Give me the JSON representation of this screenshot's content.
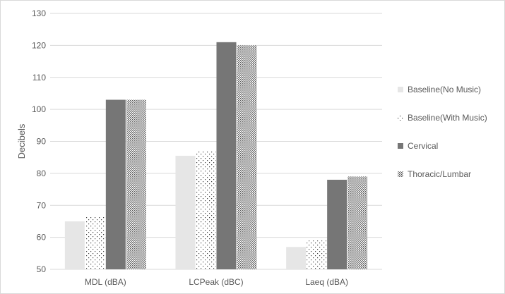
{
  "chart_data": {
    "type": "bar",
    "title": "",
    "xlabel": "",
    "ylabel": "Decibels",
    "ylim": [
      50,
      130
    ],
    "y_ticks": [
      50,
      60,
      70,
      80,
      90,
      100,
      110,
      120,
      130
    ],
    "grid": true,
    "legend_position": "right",
    "categories": [
      "MDL (dBA)",
      "LCPeak (dBC)",
      "Laeq (dBA)"
    ],
    "series": [
      {
        "name": "Baseline(No Music)",
        "pattern": "solid",
        "color": "#e6e6e6",
        "values": [
          65,
          85.5,
          57
        ]
      },
      {
        "name": "Baseline(With Music)",
        "pattern": "dots",
        "color": "#404040",
        "values": [
          66.5,
          87,
          59
        ]
      },
      {
        "name": "Cervical",
        "pattern": "solid",
        "color": "#767676",
        "values": [
          103,
          121,
          78
        ]
      },
      {
        "name": "Thoracic/Lumbar",
        "pattern": "dense-dots",
        "color": "#595959",
        "values": [
          103,
          120,
          79
        ]
      }
    ]
  }
}
